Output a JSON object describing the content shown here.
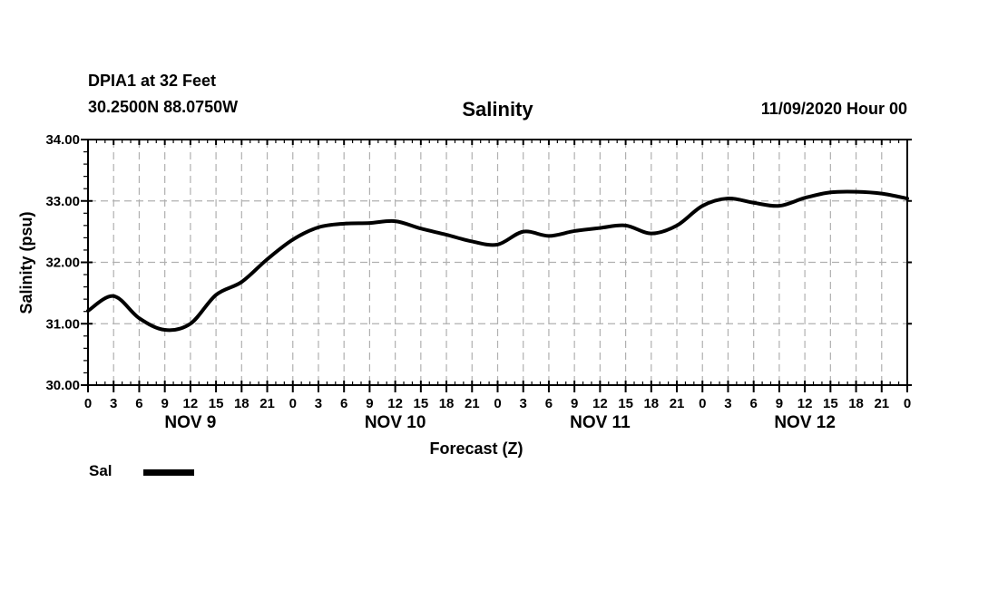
{
  "header": {
    "station_line1": "DPIA1 at 32 Feet",
    "station_line2": "30.2500N 88.0750W",
    "title": "Salinity",
    "datetime": "11/09/2020 Hour 00"
  },
  "axes": {
    "y_label": "Salinity (psu)",
    "x_label": "Forecast (Z)",
    "y_tick_labels": [
      "34.00",
      "33.00",
      "32.00",
      "31.00",
      "30.00"
    ],
    "x_tick_labels": [
      "0",
      "3",
      "6",
      "9",
      "12",
      "15",
      "18",
      "21",
      "0",
      "3",
      "6",
      "9",
      "12",
      "15",
      "18",
      "21",
      "0",
      "3",
      "6",
      "9",
      "12",
      "15",
      "18",
      "21",
      "0",
      "3",
      "6",
      "9",
      "12",
      "15",
      "18",
      "21",
      "0"
    ],
    "day_labels": [
      "NOV 9",
      "NOV 10",
      "NOV 11",
      "NOV 12"
    ]
  },
  "legend": {
    "label": "Sal"
  },
  "colors": {
    "line": "#000000",
    "grid": "#b0b0b0",
    "text": "#000000",
    "background": "#ffffff"
  },
  "chart_data": {
    "type": "line",
    "title": "Salinity",
    "xlabel": "Forecast (Z)",
    "ylabel": "Salinity (psu)",
    "ylim": [
      30.0,
      34.0
    ],
    "xlim_hours": [
      0,
      96
    ],
    "x_major_step_hours": 3,
    "x_minor_step_hours": 1,
    "y_major_step": 1.0,
    "y_minor_step": 0.2,
    "grid": "dashed",
    "legend_position": "bottom-left",
    "series": [
      {
        "name": "Sal",
        "hours": [
          0,
          3,
          6,
          9,
          12,
          15,
          18,
          21,
          24,
          27,
          30,
          33,
          36,
          39,
          42,
          45,
          48,
          51,
          54,
          57,
          60,
          63,
          66,
          69,
          72,
          75,
          78,
          81,
          84,
          87,
          90,
          93,
          96
        ],
        "values": [
          31.21,
          31.45,
          31.09,
          30.9,
          31.0,
          31.47,
          31.68,
          32.05,
          32.37,
          32.57,
          32.63,
          32.64,
          32.67,
          32.55,
          32.45,
          32.34,
          32.29,
          32.5,
          32.43,
          32.51,
          32.56,
          32.6,
          32.47,
          32.6,
          32.92,
          33.04,
          32.97,
          32.92,
          33.05,
          33.14,
          33.15,
          33.12,
          33.04
        ]
      }
    ]
  }
}
